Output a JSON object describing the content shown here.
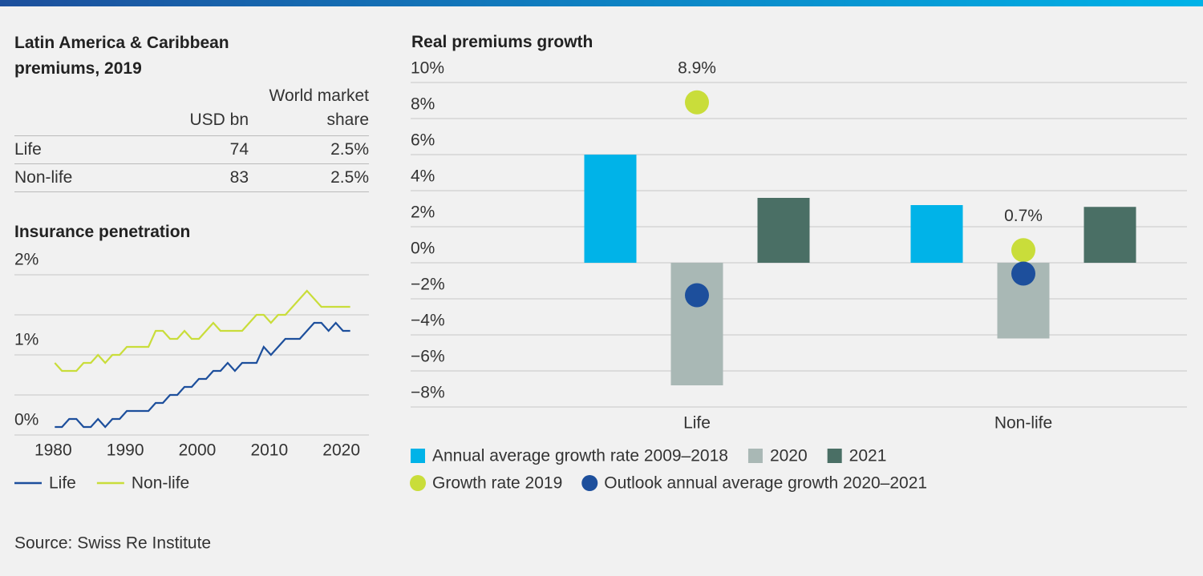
{
  "table": {
    "title": "Latin America & Caribbean premiums, 2019",
    "columns": [
      "USD bn",
      "World market share"
    ],
    "rows": [
      [
        "Life",
        "74",
        "2.5%"
      ],
      [
        "Non-life",
        "83",
        "2.5%"
      ]
    ]
  },
  "chart_data": [
    {
      "type": "line",
      "title": "Insurance penetration",
      "x": [
        1980,
        1981,
        1982,
        1983,
        1984,
        1985,
        1986,
        1987,
        1988,
        1989,
        1990,
        1991,
        1992,
        1993,
        1994,
        1995,
        1996,
        1997,
        1998,
        1999,
        2000,
        2001,
        2002,
        2003,
        2004,
        2005,
        2006,
        2007,
        2008,
        2009,
        2010,
        2011,
        2012,
        2013,
        2014,
        2015,
        2016,
        2017,
        2018,
        2019,
        2020,
        2021
      ],
      "xlim": [
        1974.4,
        2023.6
      ],
      "xticks": [
        1980,
        1990,
        2000,
        2010,
        2020
      ],
      "ylim": [
        0,
        2
      ],
      "yticks": [
        {
          "value": 0,
          "label": "0%"
        },
        {
          "value": 1,
          "label": "1%"
        },
        {
          "value": 2,
          "label": "2%"
        }
      ],
      "minor_yticks": [
        0.5,
        1.5
      ],
      "grid": true,
      "legend": "bottom",
      "series": [
        {
          "name": "Life",
          "color": "#1d4f9c",
          "values": [
            0.1,
            0.1,
            0.2,
            0.2,
            0.1,
            0.1,
            0.2,
            0.1,
            0.2,
            0.2,
            0.3,
            0.3,
            0.3,
            0.3,
            0.4,
            0.4,
            0.5,
            0.5,
            0.6,
            0.6,
            0.7,
            0.7,
            0.8,
            0.8,
            0.9,
            0.8,
            0.9,
            0.9,
            0.9,
            1.1,
            1.0,
            1.1,
            1.2,
            1.2,
            1.2,
            1.3,
            1.4,
            1.4,
            1.3,
            1.4,
            1.3,
            1.3
          ]
        },
        {
          "name": "Non-life",
          "color": "#c9dd3a",
          "values": [
            0.9,
            0.8,
            0.8,
            0.8,
            0.9,
            0.9,
            1.0,
            0.9,
            1.0,
            1.0,
            1.1,
            1.1,
            1.1,
            1.1,
            1.3,
            1.3,
            1.2,
            1.2,
            1.3,
            1.2,
            1.2,
            1.3,
            1.4,
            1.3,
            1.3,
            1.3,
            1.3,
            1.4,
            1.5,
            1.5,
            1.4,
            1.5,
            1.5,
            1.6,
            1.7,
            1.8,
            1.7,
            1.6,
            1.6,
            1.6,
            1.6,
            1.6
          ]
        }
      ]
    },
    {
      "type": "bar",
      "title": "Real premiums growth",
      "categories": [
        "Life",
        "Non-life"
      ],
      "ylim": [
        -8,
        10
      ],
      "yticks": [
        {
          "value": -8,
          "label": "−8%"
        },
        {
          "value": -6,
          "label": "−6%"
        },
        {
          "value": -4,
          "label": "−4%"
        },
        {
          "value": -2,
          "label": "−2%"
        },
        {
          "value": 0,
          "label": "0%"
        },
        {
          "value": 2,
          "label": "2%"
        },
        {
          "value": 4,
          "label": "4%"
        },
        {
          "value": 6,
          "label": "6%"
        },
        {
          "value": 8,
          "label": "8%"
        },
        {
          "value": 10,
          "label": "10%"
        }
      ],
      "grid": true,
      "legend": "bottom",
      "series": [
        {
          "name": "Annual average growth rate 2009–2018",
          "type": "bar",
          "color": "#00b3e8",
          "values": [
            6.0,
            3.2
          ]
        },
        {
          "name": "2020",
          "type": "bar",
          "color": "#a9b8b5",
          "values": [
            -6.8,
            -4.2
          ]
        },
        {
          "name": "2021",
          "type": "bar",
          "color": "#4a6f65",
          "values": [
            3.6,
            3.1
          ]
        },
        {
          "name": "Growth rate 2019",
          "type": "scatter",
          "color": "#c9dd3a",
          "values": [
            8.9,
            0.7
          ],
          "value_labels": [
            "8.9%",
            "0.7%"
          ]
        },
        {
          "name": "Outlook annual average growth 2020–2021",
          "type": "scatter",
          "color": "#1d4f9c",
          "values": [
            -1.8,
            -0.6
          ]
        }
      ]
    }
  ],
  "source": "Source: Swiss Re Institute"
}
